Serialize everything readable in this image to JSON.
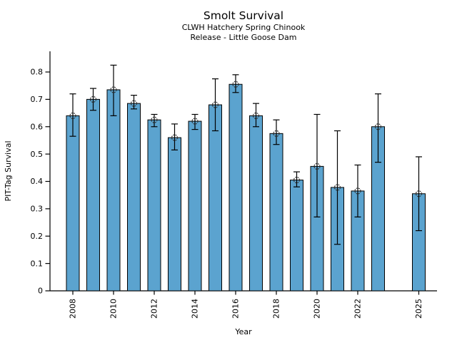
{
  "chart_data": {
    "type": "bar",
    "title": "Smolt Survival",
    "subtitle_lines": [
      "CLWH Hatchery Spring Chinook",
      "Release - Little Goose Dam"
    ],
    "xlabel": "Year",
    "ylabel": "PIT-Tag Survival",
    "ylim": [
      0,
      0.875
    ],
    "grid": false,
    "legend": null,
    "bar_color": "#5ba3cf",
    "bar_edge_color": "#000000",
    "errorbar_color": "#000000",
    "marker_style": "open-circle",
    "yticks": [
      "0",
      "0.1",
      "0.2",
      "0.3",
      "0.4",
      "0.5",
      "0.6",
      "0.7",
      "0.8"
    ],
    "xtick_years": [
      "2008",
      "2010",
      "2012",
      "2014",
      "2016",
      "2018",
      "2020",
      "2022",
      "2025"
    ],
    "points": [
      {
        "year": 2008,
        "value": 0.64,
        "ci_low": 0.565,
        "ci_high": 0.72
      },
      {
        "year": 2009,
        "value": 0.7,
        "ci_low": 0.66,
        "ci_high": 0.74
      },
      {
        "year": 2010,
        "value": 0.735,
        "ci_low": 0.64,
        "ci_high": 0.825
      },
      {
        "year": 2011,
        "value": 0.685,
        "ci_low": 0.665,
        "ci_high": 0.715
      },
      {
        "year": 2012,
        "value": 0.625,
        "ci_low": 0.6,
        "ci_high": 0.645
      },
      {
        "year": 2013,
        "value": 0.56,
        "ci_low": 0.515,
        "ci_high": 0.61
      },
      {
        "year": 2014,
        "value": 0.62,
        "ci_low": 0.59,
        "ci_high": 0.645
      },
      {
        "year": 2015,
        "value": 0.68,
        "ci_low": 0.585,
        "ci_high": 0.775
      },
      {
        "year": 2016,
        "value": 0.755,
        "ci_low": 0.725,
        "ci_high": 0.79
      },
      {
        "year": 2017,
        "value": 0.64,
        "ci_low": 0.6,
        "ci_high": 0.685
      },
      {
        "year": 2018,
        "value": 0.575,
        "ci_low": 0.535,
        "ci_high": 0.625
      },
      {
        "year": 2019,
        "value": 0.405,
        "ci_low": 0.38,
        "ci_high": 0.435
      },
      {
        "year": 2020,
        "value": 0.455,
        "ci_low": 0.27,
        "ci_high": 0.645
      },
      {
        "year": 2021,
        "value": 0.378,
        "ci_low": 0.17,
        "ci_high": 0.585
      },
      {
        "year": 2022,
        "value": 0.365,
        "ci_low": 0.27,
        "ci_high": 0.46
      },
      {
        "year": 2023,
        "value": 0.6,
        "ci_low": 0.47,
        "ci_high": 0.72
      },
      {
        "year": 2025,
        "value": 0.355,
        "ci_low": 0.22,
        "ci_high": 0.49
      }
    ]
  }
}
